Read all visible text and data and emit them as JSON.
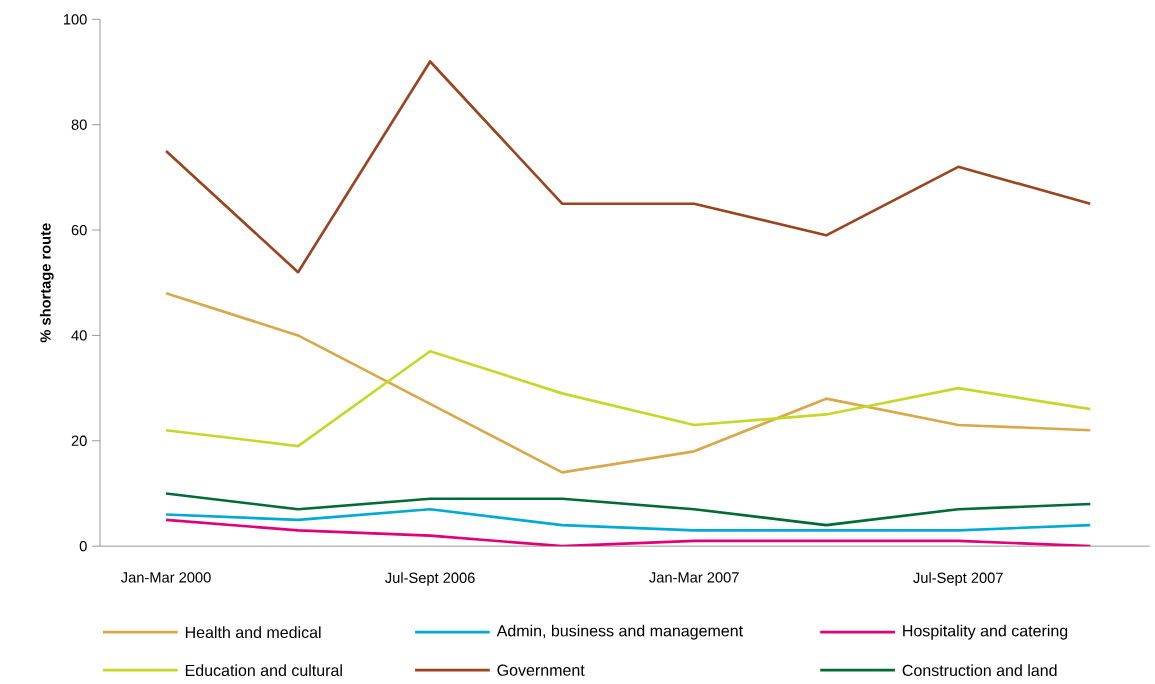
{
  "chart_data": {
    "type": "line",
    "ylabel": "% shortage route",
    "categories": [
      "Jan-Mar 2000",
      null,
      "Jul-Sept 2006",
      null,
      "Jan-Mar 2007",
      null,
      "Jul-Sept 2007",
      null
    ],
    "series": [
      {
        "name": "Health and medical",
        "color": "#d9a84a",
        "values": [
          48,
          40,
          27,
          14,
          18,
          28,
          23,
          22
        ]
      },
      {
        "name": "Admin, business and management",
        "color": "#00a9d6",
        "values": [
          6,
          5,
          7,
          4,
          3,
          3,
          3,
          4
        ]
      },
      {
        "name": "Hospitality and catering",
        "color": "#e0007a",
        "values": [
          5,
          3,
          2,
          0,
          1,
          1,
          1,
          0
        ]
      },
      {
        "name": "Education and cultural",
        "color": "#c5d82a",
        "values": [
          22,
          19,
          37,
          29,
          23,
          25,
          30,
          26
        ]
      },
      {
        "name": "Government",
        "color": "#9a4420",
        "values": [
          75,
          52,
          92,
          65,
          65,
          59,
          72,
          65
        ]
      },
      {
        "name": "Construction and land",
        "color": "#006b35",
        "values": [
          10,
          7,
          9,
          9,
          7,
          4,
          7,
          8
        ]
      }
    ],
    "ylim": [
      0,
      100
    ],
    "yticks": [
      0,
      20,
      40,
      60,
      80,
      100
    ],
    "legend": "bottom",
    "grid": false,
    "marker": "none",
    "line_style": "solid"
  }
}
